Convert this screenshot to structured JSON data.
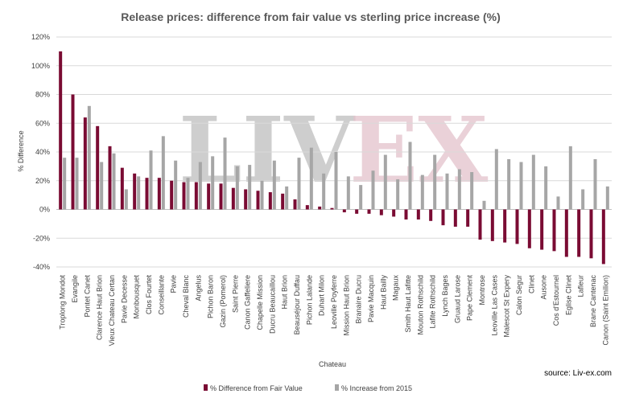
{
  "source_text": "source: Liv-ex.com",
  "watermark": {
    "left": "LIV",
    "right": "EX",
    "left_color": "#bdbdbd",
    "right_color": "#e3c1cb"
  },
  "colors": {
    "series1": "#7a0b33",
    "series2": "#a6a6a6",
    "grid": "#d9d9d9",
    "axis": "#bfbfbf"
  },
  "chart_data": {
    "type": "bar",
    "title": "Release prices: difference from fair value vs sterling price increase (%)",
    "xlabel": "Chateau",
    "ylabel": "% Difference",
    "ylim": [
      -40,
      120
    ],
    "ytick_step": 20,
    "yticks": [
      "-40%",
      "-20%",
      "0%",
      "20%",
      "40%",
      "60%",
      "80%",
      "100%",
      "120%"
    ],
    "legend_position": "bottom",
    "grid": true,
    "categories": [
      "Troplong Mondot",
      "Evangile",
      "Pontet Canet",
      "Clarence Haut Brion",
      "Vieux Chateau Certan",
      "Pavie Decesse",
      "Monbousquet",
      "Clos Fourtet",
      "Conseillante",
      "Pavie",
      "Cheval Blanc",
      "Angelus",
      "Pichon Baron",
      "Gazin (Pomerol)",
      "Saint Pierre",
      "Canon Gaffeliere",
      "Chapelle Mission",
      "Ducru Beaucaillou",
      "Haut Brion",
      "Beauséjour Duffau",
      "Pichon Lalande",
      "Duhart Milon",
      "Leoville Poyferre",
      "Mission Haut Brion",
      "Branaire Ducru",
      "Pavie Macquin",
      "Haut Bailly",
      "Magaux",
      "Smith Haut Lafitte",
      "Mouton Rothschild",
      "Lafite Rothschild",
      "Lynch Bages",
      "Gruaud Larose",
      "Pape Clement",
      "Montrose",
      "Leoville Las Cases",
      "Malescot St Expery",
      "Calon Segur",
      "Clinet",
      "Ausone",
      "Cos d'Estournel",
      "Eglise Clinet",
      "Lafleur",
      "Brane Cantenac",
      "Canon (Saint Emilion)"
    ],
    "series": [
      {
        "name": "% Difference from Fair Value",
        "values": [
          110,
          80,
          64,
          58,
          44,
          29,
          25,
          22,
          22,
          20,
          19,
          19,
          18,
          18,
          15,
          14,
          13,
          12,
          11,
          7,
          3,
          2,
          1,
          -2,
          -3,
          -3,
          -4,
          -5,
          -7,
          -7,
          -8,
          -11,
          -12,
          -12,
          -21,
          -22,
          -23,
          -24,
          -27,
          -28,
          -29,
          -33,
          -33,
          -34,
          -38
        ]
      },
      {
        "name": "% Increase from 2015",
        "values": [
          36,
          36,
          72,
          33,
          39,
          14,
          23,
          41,
          51,
          34,
          22,
          33,
          37,
          50,
          30,
          31,
          20,
          34,
          16,
          36,
          43,
          25,
          40,
          23,
          17,
          27,
          38,
          21,
          47,
          24,
          38,
          25,
          28,
          26,
          6,
          42,
          35,
          33,
          38,
          30,
          9,
          44,
          14,
          35,
          16
        ]
      }
    ]
  }
}
